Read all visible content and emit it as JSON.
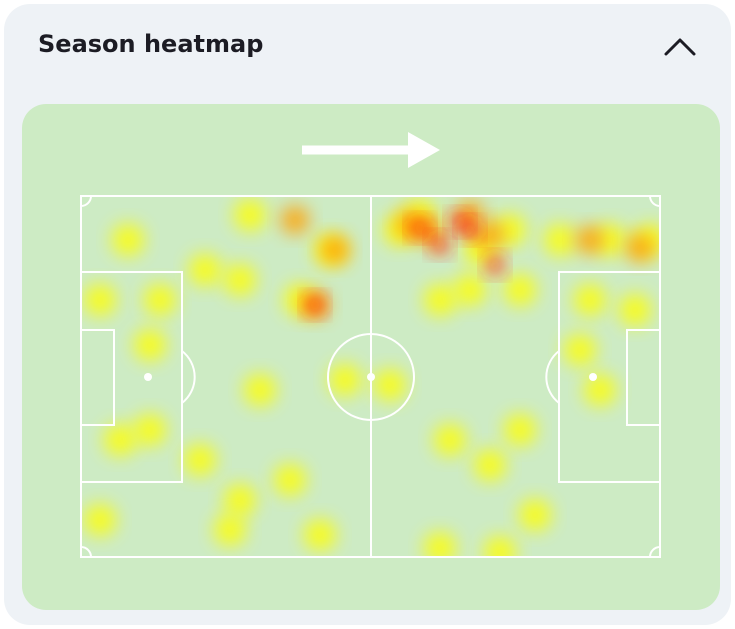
{
  "header": {
    "title": "Season heatmap"
  }
}
